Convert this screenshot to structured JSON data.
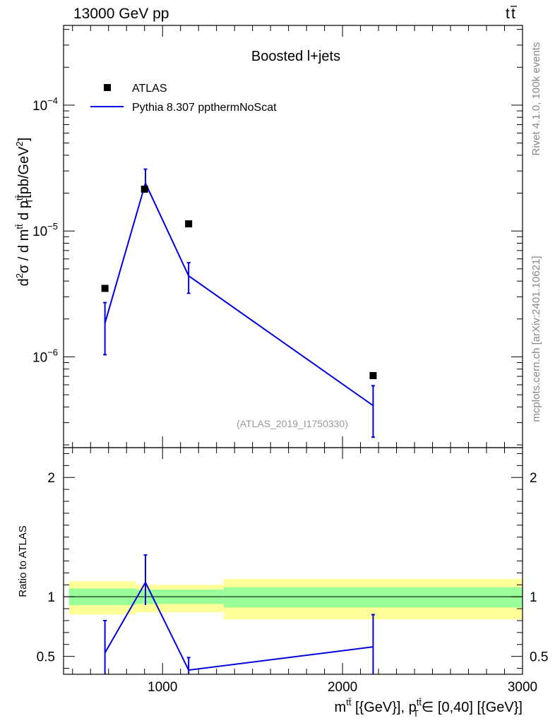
{
  "header": {
    "left": "13000 GeV pp",
    "right_base": "t",
    "right_bar": "t"
  },
  "side_labels": {
    "rivet": "Rivet 4.1.0,  100k events",
    "mcplots": "mcplots.cern.ch [arXiv:2401.10621]"
  },
  "chart_data": [
    {
      "type": "line",
      "panel": "main",
      "title": "Boosted l+jets",
      "analysis_label": "(ATLAS_2019_I1750330)",
      "ylabel": "d²σ / d mᵗᵗ d pᵗᵗ [pb/GeV²]",
      "yscale": "log",
      "xlim": [
        450,
        3000
      ],
      "ylim": [
        1.9e-07,
        0.00043
      ],
      "y_ticks": [
        {
          "value": 1e-06,
          "mant": "10",
          "exp": "−6"
        },
        {
          "value": 1e-05,
          "mant": "10",
          "exp": "−5"
        },
        {
          "value": 0.0001,
          "mant": "10",
          "exp": "−4"
        }
      ],
      "legend": {
        "position": "top-left",
        "entries": [
          "ATLAS",
          "Pythia 8.307 ppthermNoScat"
        ]
      },
      "series": [
        {
          "name": "ATLAS",
          "kind": "marker",
          "color": "#000000",
          "x": [
            680,
            900,
            1145,
            2170
          ],
          "y": [
            3.5e-06,
            2.15e-05,
            1.14e-05,
            7.1e-07
          ]
        },
        {
          "name": "Pythia 8.307 ppthermNoScat",
          "kind": "line",
          "color": "#0000dd",
          "x": [
            680,
            905,
            1145,
            2170
          ],
          "y": [
            1.85e-06,
            2.4e-05,
            4.4e-06,
            4.1e-07
          ],
          "yerr_low": [
            1.04e-06,
            2.05e-05,
            3.2e-06,
            2.3e-07
          ],
          "yerr_high": [
            2.7e-06,
            3.1e-05,
            5.6e-06,
            5.9e-07
          ]
        }
      ]
    },
    {
      "type": "line",
      "panel": "ratio",
      "ylabel": "Ratio to ATLAS",
      "xlabel": "mᵗᵗ [{GeV}], pᵗᵗ ∈ [0,40] [{GeV}]",
      "xlim": [
        450,
        3000
      ],
      "ylim": [
        0.35,
        2.25
      ],
      "x_ticks": [
        1000,
        2000,
        3000
      ],
      "y_ticks": [
        0.5,
        1,
        2
      ],
      "bands": [
        {
          "x0": 480,
          "x1": 850,
          "stat_lo": 0.93,
          "stat_hi": 1.07,
          "tot_lo": 0.85,
          "tot_hi": 1.13
        },
        {
          "x0": 850,
          "x1": 1340,
          "stat_lo": 0.94,
          "stat_hi": 1.06,
          "tot_lo": 0.87,
          "tot_hi": 1.1
        },
        {
          "x0": 1340,
          "x1": 3000,
          "stat_lo": 0.91,
          "stat_hi": 1.08,
          "tot_lo": 0.81,
          "tot_hi": 1.15
        }
      ],
      "series": [
        {
          "name": "Pythia 8.307 ppthermNoScat / ATLAS",
          "color": "#0000dd",
          "x": [
            680,
            905,
            1145,
            2170
          ],
          "y": [
            0.53,
            1.12,
            0.385,
            0.58
          ],
          "yerr_low": [
            0.3,
            0.93,
            0.28,
            0.32
          ],
          "yerr_high": [
            0.8,
            1.35,
            0.49,
            0.85
          ]
        }
      ]
    }
  ]
}
